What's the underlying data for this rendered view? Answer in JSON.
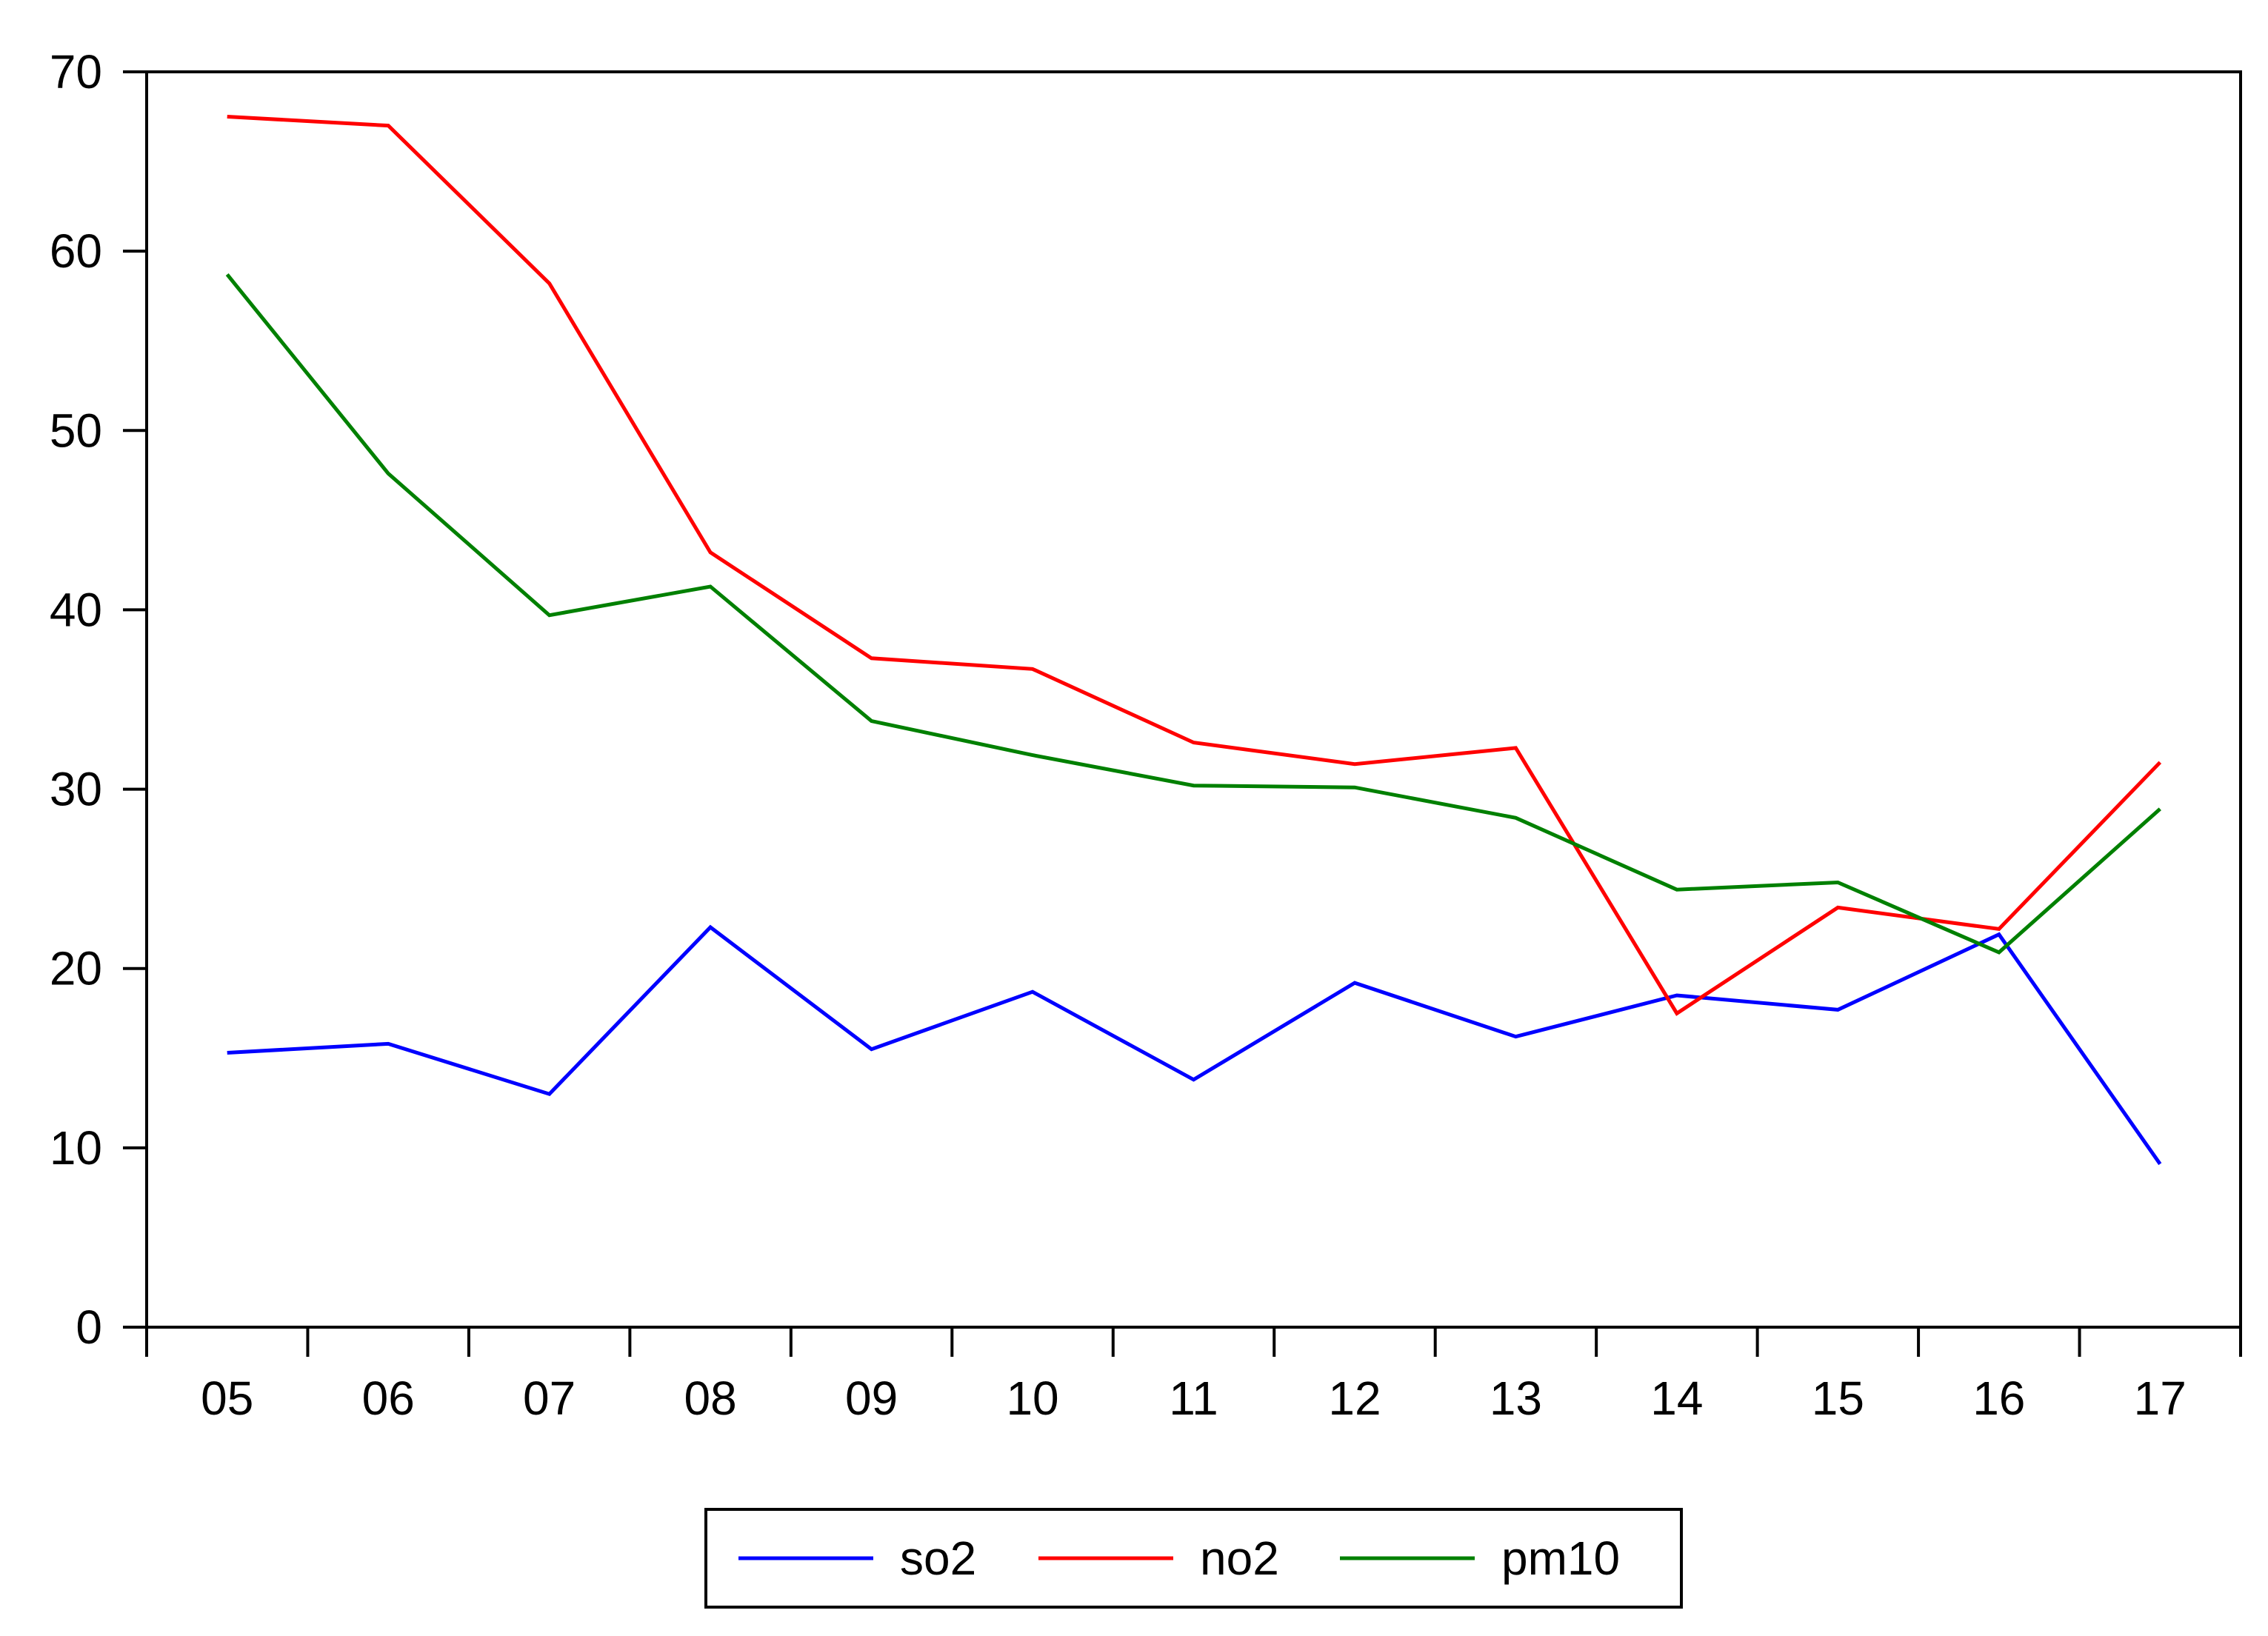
{
  "chart_data": {
    "type": "line",
    "title": "",
    "xlabel": "",
    "ylabel": "",
    "categories": [
      "05",
      "06",
      "07",
      "08",
      "09",
      "10",
      "11",
      "12",
      "13",
      "14",
      "15",
      "16",
      "17"
    ],
    "ylim": [
      0,
      70
    ],
    "yticks": [
      0,
      10,
      20,
      30,
      40,
      50,
      60,
      70
    ],
    "grid": false,
    "legend": {
      "position": "bottom-center"
    },
    "series": [
      {
        "name": "so2",
        "color": "#0000ff",
        "values": [
          15.3,
          15.8,
          13.0,
          22.3,
          15.5,
          18.7,
          13.8,
          19.2,
          16.2,
          18.5,
          17.7,
          21.9,
          9.1
        ]
      },
      {
        "name": "no2",
        "color": "#ff0000",
        "values": [
          67.5,
          67.0,
          58.2,
          43.2,
          37.3,
          36.7,
          32.6,
          31.4,
          32.3,
          17.5,
          23.4,
          22.2,
          31.5
        ]
      },
      {
        "name": "pm10",
        "color": "#008000",
        "values": [
          58.7,
          47.6,
          39.7,
          41.3,
          33.8,
          31.9,
          30.2,
          30.1,
          28.4,
          24.4,
          24.8,
          20.9,
          28.9
        ]
      }
    ]
  }
}
